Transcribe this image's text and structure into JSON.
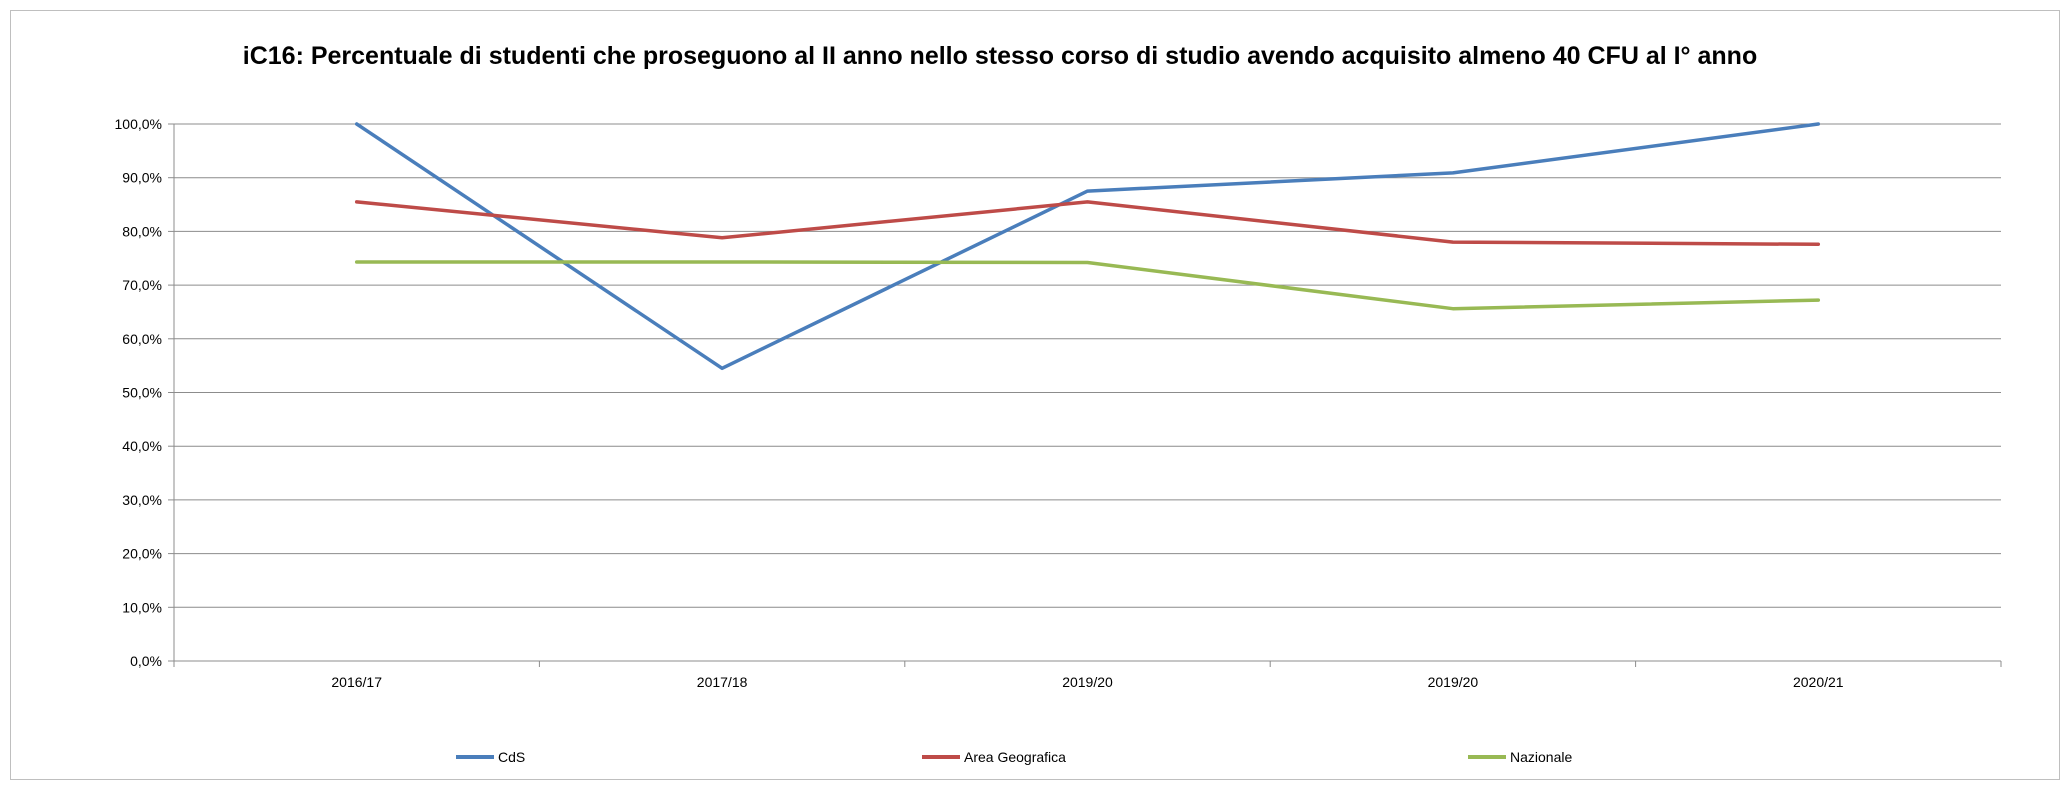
{
  "chart_data": {
    "type": "line",
    "title": "iC16: Percentuale di studenti che proseguono al II anno nello stesso corso di studio avendo acquisito almeno 40 CFU al I° anno",
    "categories": [
      "2016/17",
      "2017/18",
      "2019/20",
      "2019/20",
      "2020/21"
    ],
    "y_ticks": [
      "0,0%",
      "10,0%",
      "20,0%",
      "30,0%",
      "40,0%",
      "50,0%",
      "60,0%",
      "70,0%",
      "80,0%",
      "90,0%",
      "100,0%"
    ],
    "ylim": [
      0,
      100
    ],
    "grid": true,
    "legend_position": "bottom",
    "series": [
      {
        "name": "CdS",
        "color": "#4a7ebb",
        "values": [
          100.0,
          54.5,
          87.5,
          90.9,
          100.0
        ]
      },
      {
        "name": "Area Geografica",
        "color": "#be4b48",
        "values": [
          85.5,
          78.8,
          85.5,
          78.0,
          77.6
        ]
      },
      {
        "name": "Nazionale",
        "color": "#98b954",
        "values": [
          74.3,
          74.3,
          74.2,
          65.6,
          67.2
        ]
      }
    ]
  }
}
